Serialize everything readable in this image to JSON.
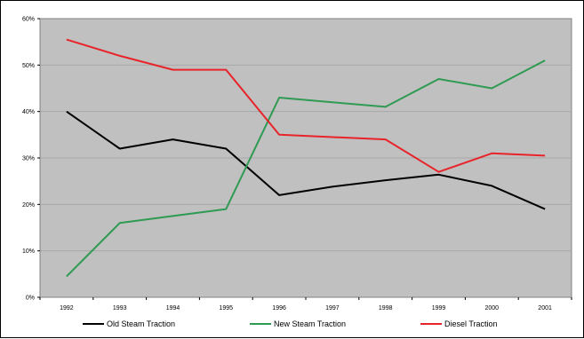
{
  "chart_data": {
    "type": "line",
    "x": [
      "1992",
      "1993",
      "1994",
      "1995",
      "1996",
      "1997",
      "1998",
      "1999",
      "2000",
      "2001"
    ],
    "series": [
      {
        "name": "Old Steam Traction",
        "color": "#000000",
        "values": [
          40,
          32,
          34,
          32,
          22,
          23.8,
          25.2,
          26.4,
          24,
          19
        ]
      },
      {
        "name": "New Steam Traction",
        "color": "#2e9a52",
        "values": [
          4.5,
          16,
          17.5,
          19,
          43,
          42,
          41,
          47,
          45,
          51
        ]
      },
      {
        "name": "Diesel Traction",
        "color": "#e8232a",
        "values": [
          55.5,
          52,
          49,
          49,
          35,
          34.5,
          34,
          27,
          31,
          30.5
        ]
      }
    ],
    "ylim": [
      0,
      60
    ],
    "yticks": [
      "0%",
      "10%",
      "20%",
      "30%",
      "40%",
      "50%",
      "60%"
    ],
    "grid": true,
    "plot_background": "#c0c0c0",
    "legend_position": "bottom"
  }
}
